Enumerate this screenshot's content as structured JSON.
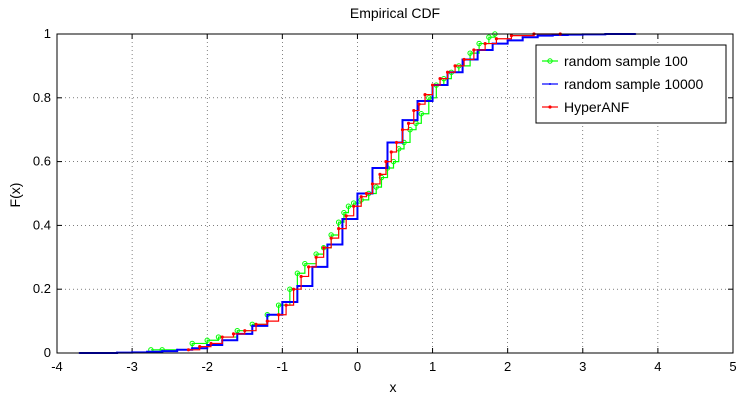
{
  "chart_data": {
    "type": "line",
    "title": "Empirical CDF",
    "xlabel": "x",
    "ylabel": "F(x)",
    "xlim": [
      -4,
      5
    ],
    "ylim": [
      0,
      1
    ],
    "xticks": [
      "-4",
      "-3",
      "-2",
      "-1",
      "0",
      "1",
      "2",
      "3",
      "4",
      "5"
    ],
    "yticks": [
      "0",
      "0.2",
      "0.4",
      "0.6",
      "0.8",
      "1"
    ],
    "grid": true,
    "legend_position": "top-right",
    "series": [
      {
        "name": "random sample 100",
        "color": "#00ff00",
        "marker": "circle",
        "x": [
          -2.75,
          -2.6,
          -2.2,
          -2.0,
          -1.85,
          -1.6,
          -1.4,
          -1.2,
          -1.05,
          -0.9,
          -0.8,
          -0.7,
          -0.55,
          -0.45,
          -0.35,
          -0.25,
          -0.18,
          -0.12,
          -0.05,
          0.05,
          0.15,
          0.25,
          0.32,
          0.4,
          0.48,
          0.55,
          0.62,
          0.7,
          0.78,
          0.85,
          0.95,
          1.05,
          1.15,
          1.25,
          1.35,
          1.5,
          1.62,
          1.75,
          1.83
        ],
        "y": [
          0.01,
          0.01,
          0.03,
          0.04,
          0.05,
          0.07,
          0.09,
          0.12,
          0.15,
          0.2,
          0.25,
          0.28,
          0.31,
          0.33,
          0.37,
          0.41,
          0.44,
          0.46,
          0.47,
          0.48,
          0.5,
          0.52,
          0.55,
          0.58,
          0.6,
          0.64,
          0.66,
          0.7,
          0.72,
          0.75,
          0.8,
          0.84,
          0.86,
          0.88,
          0.9,
          0.94,
          0.97,
          0.99,
          1.0
        ]
      },
      {
        "name": "random sample 10000",
        "color": "#0000ff",
        "marker": "point",
        "x": [
          -3.7,
          -3.2,
          -3.0,
          -2.8,
          -2.6,
          -2.4,
          -2.2,
          -2.0,
          -1.8,
          -1.6,
          -1.4,
          -1.2,
          -1.0,
          -0.8,
          -0.6,
          -0.4,
          -0.2,
          0.0,
          0.2,
          0.4,
          0.6,
          0.8,
          1.0,
          1.2,
          1.4,
          1.6,
          1.8,
          2.0,
          2.2,
          2.4,
          2.6,
          2.8,
          3.0,
          3.3,
          3.7
        ],
        "y": [
          0.0,
          0.001,
          0.002,
          0.004,
          0.006,
          0.01,
          0.015,
          0.025,
          0.04,
          0.06,
          0.085,
          0.12,
          0.16,
          0.21,
          0.27,
          0.34,
          0.42,
          0.5,
          0.58,
          0.66,
          0.73,
          0.79,
          0.84,
          0.88,
          0.92,
          0.95,
          0.97,
          0.98,
          0.99,
          0.995,
          0.997,
          0.998,
          0.999,
          1.0,
          1.0
        ]
      },
      {
        "name": "HyperANF",
        "color": "#ff0000",
        "marker": "dot",
        "x": [
          -2.25,
          -2.1,
          -1.95,
          -1.8,
          -1.65,
          -1.5,
          -1.35,
          -1.2,
          -1.05,
          -0.95,
          -0.85,
          -0.75,
          -0.65,
          -0.55,
          -0.45,
          -0.35,
          -0.25,
          -0.15,
          -0.05,
          0.05,
          0.12,
          0.2,
          0.3,
          0.38,
          0.45,
          0.52,
          0.6,
          0.68,
          0.75,
          0.82,
          0.9,
          1.0,
          1.1,
          1.2,
          1.3,
          1.42,
          1.55,
          1.7,
          1.85,
          2.05,
          2.35,
          2.7
        ],
        "y": [
          0.01,
          0.02,
          0.03,
          0.05,
          0.06,
          0.07,
          0.09,
          0.1,
          0.12,
          0.15,
          0.2,
          0.24,
          0.27,
          0.3,
          0.33,
          0.36,
          0.39,
          0.43,
          0.46,
          0.49,
          0.5,
          0.53,
          0.56,
          0.6,
          0.63,
          0.66,
          0.7,
          0.72,
          0.76,
          0.78,
          0.81,
          0.84,
          0.86,
          0.88,
          0.9,
          0.92,
          0.95,
          0.97,
          0.985,
          0.995,
          1.0,
          1.0
        ]
      }
    ]
  }
}
